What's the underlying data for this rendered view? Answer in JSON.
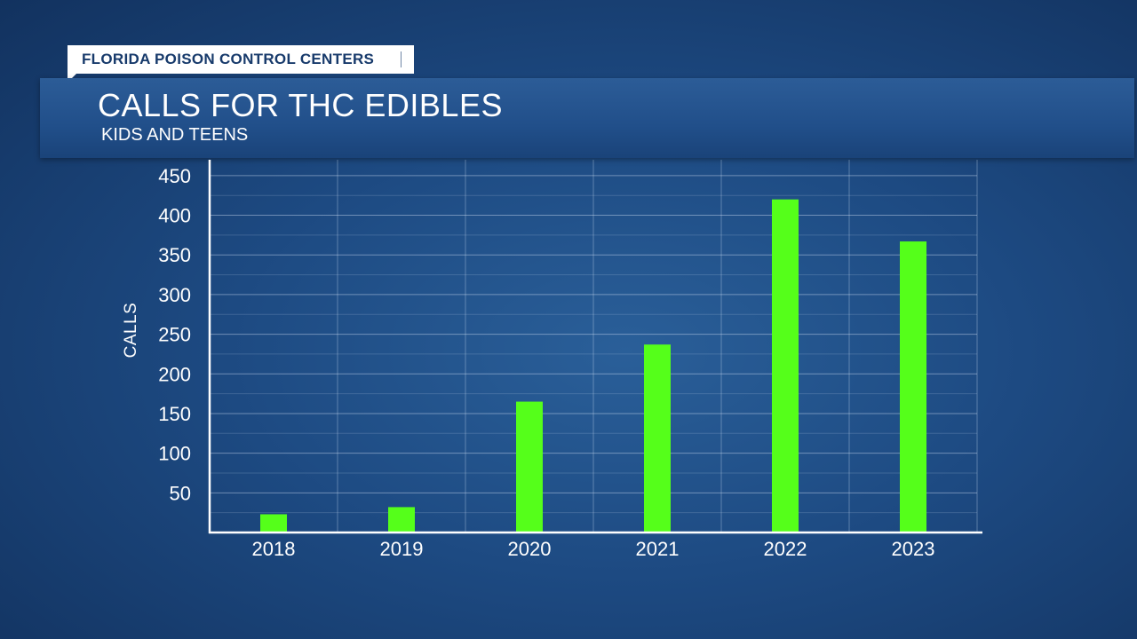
{
  "source": "FLORIDA POISON CONTROL CENTERS",
  "chart_data": {
    "type": "bar",
    "title": "CALLS FOR THC EDIBLES",
    "subtitle": "KIDS AND TEENS",
    "xlabel": "",
    "ylabel": "CALLS",
    "categories": [
      "2018",
      "2019",
      "2020",
      "2021",
      "2022",
      "2023"
    ],
    "values": [
      23,
      32,
      165,
      237,
      420,
      367
    ],
    "ylim": [
      0,
      470
    ],
    "yticks": [
      50,
      100,
      150,
      200,
      250,
      300,
      350,
      400,
      450
    ],
    "grid": true,
    "bar_color": "#55ff1a"
  }
}
